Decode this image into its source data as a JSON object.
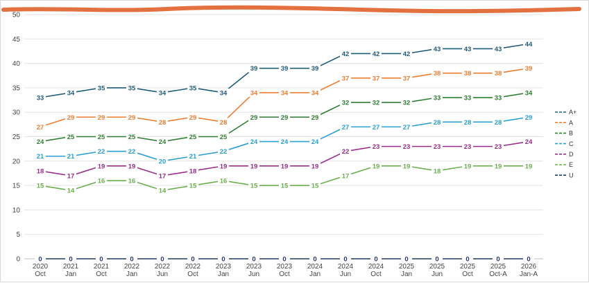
{
  "chart_data": {
    "type": "line",
    "title": "",
    "xlabel": "",
    "ylabel": "",
    "ylim": [
      0,
      50
    ],
    "yticks": [
      0,
      5,
      10,
      15,
      20,
      25,
      30,
      35,
      40,
      45,
      50
    ],
    "grid": true,
    "legend_position": "right",
    "categories": [
      [
        "2020",
        "Oct"
      ],
      [
        "2021",
        "Jan"
      ],
      [
        "2021",
        "Oct"
      ],
      [
        "2022",
        "Jan"
      ],
      [
        "2022",
        "Jun"
      ],
      [
        "2022",
        "Oct"
      ],
      [
        "2023",
        "Jan"
      ],
      [
        "2023",
        "Jun"
      ],
      [
        "2023",
        "Oct"
      ],
      [
        "2024",
        "Jan"
      ],
      [
        "2024",
        "Jun"
      ],
      [
        "2024",
        "Oct"
      ],
      [
        "2025",
        "Jan"
      ],
      [
        "2025",
        "Jun"
      ],
      [
        "2025",
        "Oct"
      ],
      [
        "2025",
        "Oct-A"
      ],
      [
        "2026",
        "Jan-A"
      ]
    ],
    "series": [
      {
        "name": "A+",
        "color": "#1f5c7a",
        "values": [
          33,
          34,
          35,
          35,
          34,
          35,
          34,
          39,
          39,
          39,
          42,
          42,
          42,
          43,
          43,
          43,
          44
        ]
      },
      {
        "name": "A",
        "color": "#ed7d31",
        "values": [
          27,
          29,
          29,
          29,
          28,
          29,
          28,
          34,
          34,
          34,
          37,
          37,
          37,
          38,
          38,
          38,
          39
        ]
      },
      {
        "name": "B",
        "color": "#2e7d32",
        "values": [
          24,
          25,
          25,
          25,
          24,
          25,
          25,
          29,
          29,
          29,
          32,
          32,
          32,
          33,
          33,
          33,
          34
        ]
      },
      {
        "name": "C",
        "color": "#2aa0d2",
        "values": [
          21,
          21,
          22,
          22,
          20,
          21,
          22,
          24,
          24,
          24,
          27,
          27,
          27,
          28,
          28,
          28,
          29
        ]
      },
      {
        "name": "D",
        "color": "#9c2c8c",
        "values": [
          18,
          17,
          19,
          19,
          17,
          18,
          19,
          19,
          19,
          19,
          22,
          23,
          23,
          23,
          23,
          23,
          24
        ]
      },
      {
        "name": "E",
        "color": "#6ab04c",
        "values": [
          15,
          14,
          16,
          16,
          14,
          15,
          16,
          15,
          15,
          15,
          17,
          19,
          19,
          18,
          19,
          19,
          19
        ]
      },
      {
        "name": "U",
        "color": "#1f3864",
        "values": [
          0,
          0,
          0,
          0,
          0,
          0,
          0,
          0,
          0,
          0,
          0,
          0,
          0,
          0,
          0,
          0,
          0
        ]
      }
    ]
  }
}
